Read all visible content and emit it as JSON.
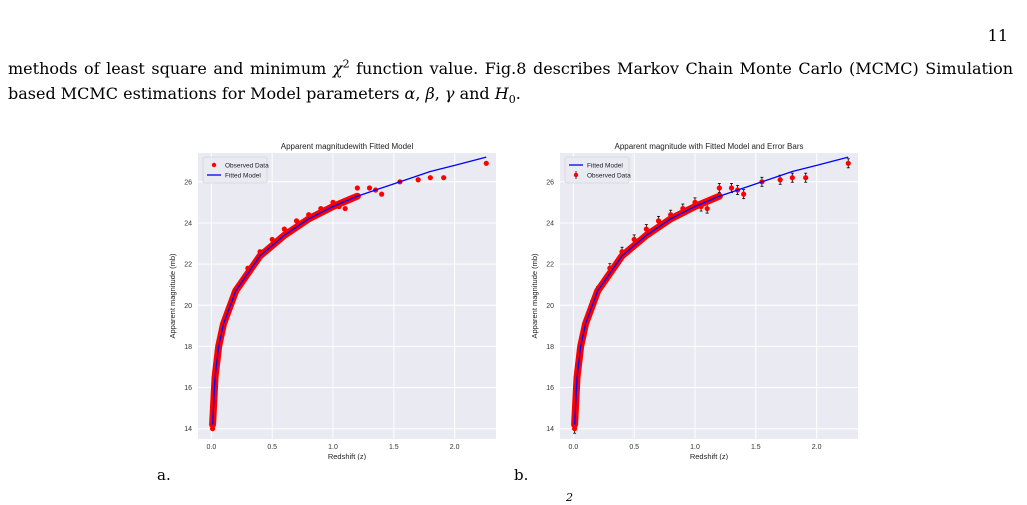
{
  "page_number": "11",
  "paragraph": {
    "part1": "methods of least square and minimum ",
    "chi": "χ",
    "chi_exp": "2",
    "part2": " function value. Fig.8 describes Markov Chain Monte Carlo (MCMC) Simulation based MCMC estimations for Model parameters ",
    "alpha": "α",
    "sep1": ", ",
    "beta": "β",
    "sep2": ", ",
    "gamma": "γ",
    "and": " and ",
    "h": "H",
    "h_sub": "0",
    "end": "."
  },
  "panel_labels": [
    "a.",
    "b."
  ],
  "caption_fragment": "2",
  "colors": {
    "plot_bg": "#eaeaf2",
    "grid": "#ffffff",
    "data": "#ff0000",
    "model": "#0000ff",
    "errorbar": "#000000"
  },
  "chart_data": [
    {
      "type": "scatter",
      "title": "Apparent magnitudewith Fitted Model",
      "xlabel": "Redshift (z)",
      "ylabel": "Apparent magnitude (mb)",
      "xlim": [
        -0.11,
        2.34
      ],
      "ylim": [
        13.5,
        27.4
      ],
      "xticks": [
        "0.0",
        "0.5",
        "1.0",
        "1.5",
        "2.0"
      ],
      "yticks": [
        "14",
        "16",
        "18",
        "20",
        "22",
        "24",
        "26"
      ],
      "grid": true,
      "legend_placement": "top-left",
      "error_bars": false,
      "series": [
        {
          "name": "Observed Data",
          "kind": "points",
          "x": [
            0.01,
            0.02,
            0.03,
            0.04,
            0.05,
            0.07,
            0.1,
            0.15,
            0.2,
            0.3,
            0.4,
            0.5,
            0.6,
            0.7,
            0.8,
            0.9,
            1.0,
            1.05,
            1.1,
            1.2,
            1.3,
            1.35,
            1.4,
            1.55,
            1.7,
            1.8,
            1.91,
            2.26
          ],
          "y": [
            14.0,
            15.6,
            16.4,
            17.0,
            17.5,
            18.3,
            19.1,
            20.0,
            20.7,
            21.8,
            22.6,
            23.2,
            23.7,
            24.1,
            24.4,
            24.7,
            25.0,
            24.8,
            24.7,
            25.7,
            25.7,
            25.6,
            25.4,
            26.0,
            26.1,
            26.2,
            26.2,
            26.9
          ]
        },
        {
          "name": "Fitted Model",
          "kind": "line",
          "x": [
            0.01,
            0.03,
            0.06,
            0.1,
            0.2,
            0.4,
            0.6,
            0.8,
            1.0,
            1.2,
            1.5,
            1.8,
            2.0,
            2.26
          ],
          "y": [
            14.2,
            16.5,
            18.0,
            19.1,
            20.7,
            22.4,
            23.4,
            24.2,
            24.8,
            25.3,
            25.9,
            26.5,
            26.8,
            27.2
          ]
        }
      ]
    },
    {
      "type": "scatter",
      "title": "Apparent magnitude with Fitted Model and Error Bars",
      "xlabel": "Redshift (z)",
      "ylabel": "Apparent magnitude (mb)",
      "xlim": [
        -0.11,
        2.34
      ],
      "ylim": [
        13.5,
        27.4
      ],
      "xticks": [
        "0.0",
        "0.5",
        "1.0",
        "1.5",
        "2.0"
      ],
      "yticks": [
        "14",
        "16",
        "18",
        "20",
        "22",
        "24",
        "26"
      ],
      "grid": true,
      "legend_placement": "top-left",
      "error_bars": true,
      "series": [
        {
          "name": "Fitted Model",
          "kind": "line",
          "x": [
            0.01,
            0.03,
            0.06,
            0.1,
            0.2,
            0.4,
            0.6,
            0.8,
            1.0,
            1.2,
            1.5,
            1.8,
            2.0,
            2.26
          ],
          "y": [
            14.2,
            16.5,
            18.0,
            19.1,
            20.7,
            22.4,
            23.4,
            24.2,
            24.8,
            25.3,
            25.9,
            26.5,
            26.8,
            27.2
          ]
        },
        {
          "name": "Observed Data",
          "kind": "points",
          "x": [
            0.01,
            0.02,
            0.03,
            0.04,
            0.05,
            0.07,
            0.1,
            0.15,
            0.2,
            0.3,
            0.4,
            0.5,
            0.6,
            0.7,
            0.8,
            0.9,
            1.0,
            1.05,
            1.1,
            1.2,
            1.3,
            1.35,
            1.4,
            1.55,
            1.7,
            1.8,
            1.91,
            2.26
          ],
          "y": [
            14.0,
            15.6,
            16.4,
            17.0,
            17.5,
            18.3,
            19.1,
            20.0,
            20.7,
            21.8,
            22.6,
            23.2,
            23.7,
            24.1,
            24.4,
            24.7,
            25.0,
            24.8,
            24.7,
            25.7,
            25.7,
            25.6,
            25.4,
            26.0,
            26.1,
            26.2,
            26.2,
            26.9
          ]
        }
      ]
    }
  ]
}
